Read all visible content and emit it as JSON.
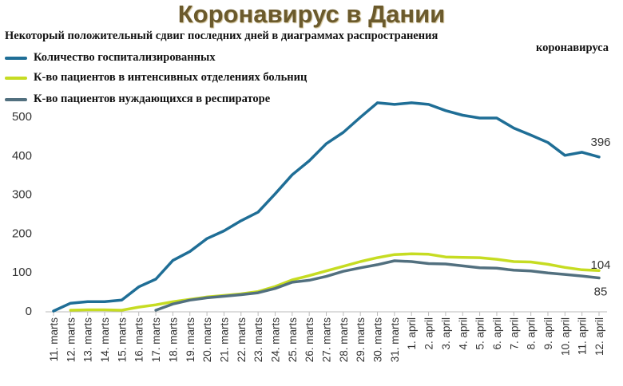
{
  "chart_data": {
    "type": "line",
    "title": "Коронавирус в Дании",
    "subtitle_line1": "Некоторый положительный сдвиг последних дней в диаграммах распространения",
    "subtitle_line2": "коронавируса",
    "categories": [
      "11. marts",
      "12. marts",
      "13. marts",
      "14. marts",
      "15. marts",
      "16. marts",
      "17. marts",
      "18. marts",
      "19. marts",
      "20. marts",
      "21. marts",
      "22. marts",
      "23. marts",
      "24. marts",
      "25. marts",
      "26. marts",
      "27. marts",
      "28. marts",
      "29. marts",
      "30. marts",
      "31. marts",
      "1. april",
      "2. april",
      "3. april",
      "4. april",
      "5. april",
      "6. april",
      "7. april",
      "8. april",
      "9. april",
      "10. april",
      "11. april",
      "12. april"
    ],
    "ylim": [
      0,
      500
    ],
    "yticks": [
      0,
      100,
      200,
      300,
      400,
      500
    ],
    "grid": false,
    "series": [
      {
        "name": "Количество госпитализированных",
        "color": "#1f6e96",
        "values": [
          0,
          20,
          24,
          24,
          28,
          62,
          82,
          130,
          153,
          186,
          206,
          232,
          254,
          301,
          350,
          386,
          430,
          459,
          498,
          535,
          531,
          535,
          531,
          515,
          503,
          496,
          496,
          470,
          452,
          433,
          400,
          408,
          396
        ],
        "end_label": "396"
      },
      {
        "name": "К-во пациентов в интенсивных отделениях больниц",
        "color": "#c6dc22",
        "values": [
          null,
          2,
          3,
          3,
          2,
          10,
          16,
          24,
          30,
          36,
          40,
          44,
          50,
          63,
          80,
          91,
          103,
          115,
          127,
          137,
          145,
          147,
          146,
          139,
          138,
          137,
          133,
          127,
          126,
          120,
          112,
          106,
          104
        ],
        "end_label": "104"
      },
      {
        "name": "К-во пациентов нуждающихся в респираторе",
        "color": "#52707f",
        "values": [
          null,
          null,
          null,
          null,
          null,
          null,
          2,
          18,
          28,
          34,
          38,
          42,
          47,
          58,
          74,
          79,
          89,
          102,
          111,
          119,
          129,
          127,
          122,
          121,
          116,
          111,
          110,
          105,
          103,
          98,
          94,
          90,
          85
        ],
        "end_label": "85"
      }
    ]
  }
}
